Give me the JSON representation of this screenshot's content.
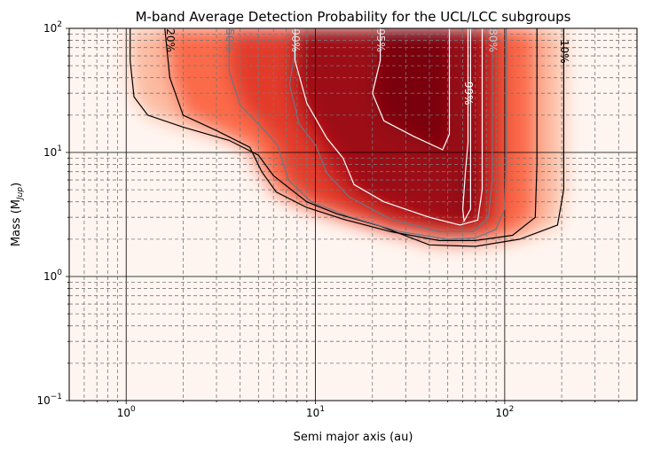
{
  "chart_data": {
    "type": "heatmap",
    "title": "M-band Average Detection Probability for the UCL/LCC subgroups",
    "xlabel": "Semi major axis (au)",
    "ylabel": "Mass (M",
    "ylabel_sub": "Jup",
    "ylabel_close": ")",
    "x_scale": "log",
    "y_scale": "log",
    "xlim": [
      0.5,
      500
    ],
    "ylim": [
      0.1,
      100
    ],
    "colormap": "Reds",
    "grid": true,
    "x_ticks": [
      {
        "value": 1,
        "base": "10",
        "exp": "0"
      },
      {
        "value": 10,
        "base": "10",
        "exp": "1"
      },
      {
        "value": 100,
        "base": "10",
        "exp": "2"
      }
    ],
    "y_ticks": [
      {
        "value": 0.1,
        "base": "10",
        "exp": "−1"
      },
      {
        "value": 1,
        "base": "10",
        "exp": "0"
      },
      {
        "value": 10,
        "base": "10",
        "exp": "1"
      },
      {
        "value": 100,
        "base": "10",
        "exp": "2"
      }
    ],
    "contours": [
      {
        "level": "10%",
        "color": "#000000",
        "label_color": "#000000",
        "points": [
          [
            1.05,
            100
          ],
          [
            1.05,
            55
          ],
          [
            1.1,
            28
          ],
          [
            1.3,
            20
          ],
          [
            2.0,
            16
          ],
          [
            3.5,
            12.5
          ],
          [
            5.0,
            9.5
          ],
          [
            6.0,
            6.5
          ],
          [
            9.0,
            4.0
          ],
          [
            13,
            3.2
          ],
          [
            22,
            2.55
          ],
          [
            40,
            1.8
          ],
          [
            70,
            1.75
          ],
          [
            120,
            2.0
          ],
          [
            190,
            2.6
          ],
          [
            205,
            5
          ],
          [
            205,
            100
          ]
        ],
        "label_at": [
          205,
          65
        ]
      },
      {
        "level": "20%",
        "color": "#000000",
        "label_color": "#000000",
        "points": [
          [
            1.6,
            100
          ],
          [
            1.7,
            40
          ],
          [
            2.0,
            20
          ],
          [
            3.0,
            15
          ],
          [
            4.5,
            11
          ],
          [
            5.2,
            7
          ],
          [
            6.2,
            4.8
          ],
          [
            9,
            3.6
          ],
          [
            14,
            2.9
          ],
          [
            25,
            2.3
          ],
          [
            45,
            1.95
          ],
          [
            70,
            1.95
          ],
          [
            110,
            2.15
          ],
          [
            145,
            3.0
          ],
          [
            148,
            8
          ],
          [
            148,
            100
          ]
        ],
        "label_at": [
          1.7,
          80
        ]
      },
      {
        "level": "50%",
        "color": "#6a7686",
        "label_color": "#6a7686",
        "points": [
          [
            3.5,
            100
          ],
          [
            3.5,
            45
          ],
          [
            4.0,
            24
          ],
          [
            5.0,
            17
          ],
          [
            6.3,
            11.5
          ],
          [
            7.2,
            6.0
          ],
          [
            9.5,
            4.0
          ],
          [
            15,
            3.05
          ],
          [
            28,
            2.3
          ],
          [
            50,
            2.0
          ],
          [
            70,
            2.05
          ],
          [
            90,
            2.4
          ],
          [
            100,
            3.5
          ],
          [
            102,
            10
          ],
          [
            102,
            100
          ]
        ],
        "label_at": [
          3.5,
          80
        ]
      },
      {
        "level": "80%",
        "color": "#6a7686",
        "label_color": "#cccccc",
        "points": [
          [
            7.8,
            100
          ],
          [
            7.7,
            58
          ],
          [
            7.3,
            35
          ],
          [
            8.2,
            17
          ],
          [
            10,
            11.5
          ],
          [
            11.5,
            6.8
          ],
          [
            15,
            4.4
          ],
          [
            25,
            2.9
          ],
          [
            45,
            2.3
          ],
          [
            68,
            2.3
          ],
          [
            82,
            3.0
          ],
          [
            86,
            6
          ],
          [
            86,
            100
          ]
        ],
        "label_at": [
          86,
          80
        ]
      },
      {
        "level": "90%",
        "color": "#ffffff",
        "label_color": "#dddddd",
        "points": [
          [
            7.8,
            100
          ],
          [
            7.8,
            55
          ],
          [
            9.0,
            25
          ],
          [
            11.5,
            13
          ],
          [
            14,
            9
          ],
          [
            16,
            5.5
          ],
          [
            23,
            4.0
          ],
          [
            40,
            3.0
          ],
          [
            58,
            2.6
          ],
          [
            72,
            2.85
          ],
          [
            76,
            5
          ],
          [
            76,
            100
          ]
        ],
        "label_at": [
          7.8,
          80
        ]
      },
      {
        "level": "95%",
        "color": "#ffffff",
        "label_color": "#dddddd",
        "points": [
          [
            22,
            100
          ],
          [
            22,
            55
          ],
          [
            20,
            30
          ],
          [
            23,
            18
          ],
          [
            33,
            13.5
          ],
          [
            47,
            10.5
          ],
          [
            51,
            14
          ],
          [
            51,
            100
          ]
        ],
        "label_at": [
          22,
          80
        ]
      },
      {
        "level": "99%",
        "color": "#ffffff",
        "label_color": "#ffffff",
        "points": [
          [
            64,
            100
          ],
          [
            64,
            12
          ],
          [
            62,
            7
          ],
          [
            60,
            3.5
          ],
          [
            61,
            2.8
          ],
          [
            66,
            3.5
          ],
          [
            66,
            100
          ]
        ],
        "label_at": [
          64,
          30
        ]
      }
    ],
    "intensity_peak": {
      "a_range": [
        10,
        60
      ],
      "m_min": 5
    }
  }
}
